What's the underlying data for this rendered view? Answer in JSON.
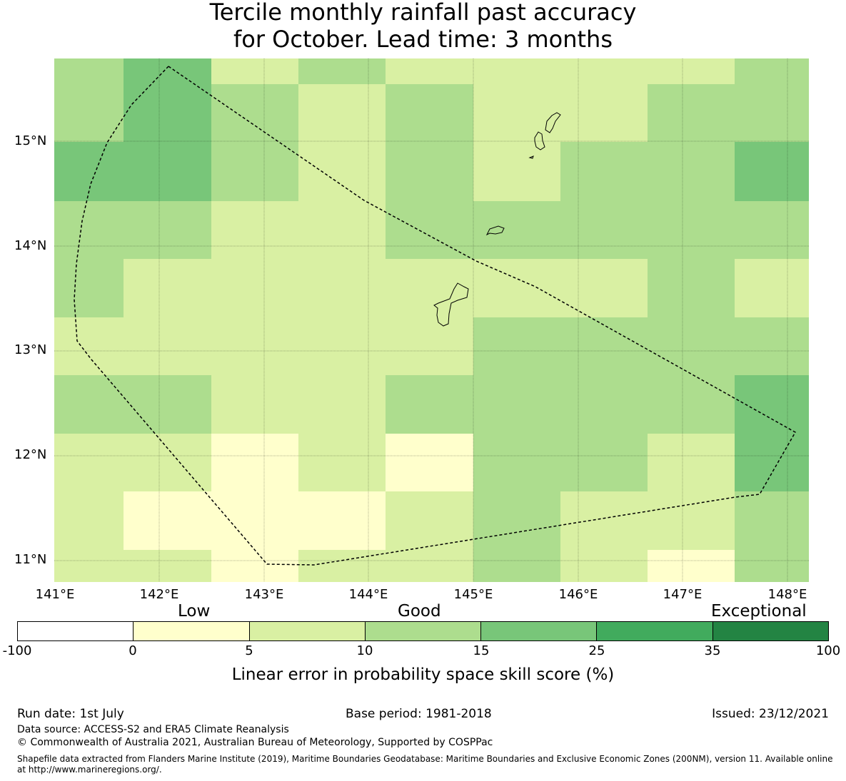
{
  "title": {
    "line1": "Tercile monthly rainfall past accuracy",
    "line2": "for October. Lead time: 3 months"
  },
  "map": {
    "lon_ticks": [
      "141°E",
      "142°E",
      "143°E",
      "144°E",
      "145°E",
      "146°E",
      "147°E",
      "148°E"
    ],
    "lat_ticks": [
      "15°N",
      "14°N",
      "13°N",
      "12°N",
      "11°N"
    ],
    "grid_rows_north_to_south": [
      [
        3,
        4,
        2,
        3,
        2,
        2,
        2,
        2,
        3
      ],
      [
        3,
        4,
        3,
        2,
        3,
        2,
        2,
        3,
        3
      ],
      [
        4,
        4,
        3,
        2,
        3,
        2,
        3,
        3,
        4
      ],
      [
        3,
        3,
        2,
        2,
        3,
        3,
        3,
        3,
        3
      ],
      [
        3,
        2,
        2,
        2,
        2,
        2,
        2,
        3,
        2
      ],
      [
        2,
        2,
        2,
        2,
        2,
        3,
        3,
        3,
        3
      ],
      [
        3,
        3,
        2,
        2,
        3,
        3,
        3,
        3,
        4
      ],
      [
        2,
        2,
        1,
        2,
        1,
        3,
        3,
        2,
        4
      ],
      [
        2,
        1,
        1,
        1,
        2,
        3,
        2,
        2,
        3
      ],
      [
        2,
        2,
        1,
        2,
        2,
        3,
        2,
        1,
        3
      ]
    ]
  },
  "colorbar": {
    "category_labels": [
      "Low",
      "Good",
      "Exceptional"
    ],
    "ticks": [
      "-100",
      "0",
      "5",
      "10",
      "15",
      "25",
      "35",
      "100"
    ],
    "colors": [
      "#ffffff",
      "#ffffcc",
      "#d9f0a3",
      "#addd8e",
      "#78c679",
      "#41ab5d",
      "#238443"
    ],
    "label": "Linear error in probability space skill score (%)"
  },
  "footer": {
    "run_date": "Run date: 1st July",
    "base_period": "Base period: 1981-2018",
    "issued": "Issued: 23/12/2021",
    "data_source": "Data source: ACCESS-S2 and ERA5 Climate Reanalysis",
    "copyright": "© Commonwealth of Australia 2021, Australian Bureau of Meteorology, Supported by COSPPac",
    "shapefile_line1": "Shapefile data extracted from Flanders Marine Institute (2019), Maritime Boundaries Geodatabase: Maritime Boundaries and Exclusive Economic Zones (200NM), version 11. Available online",
    "shapefile_line2": "at http://www.marineregions.org/."
  }
}
